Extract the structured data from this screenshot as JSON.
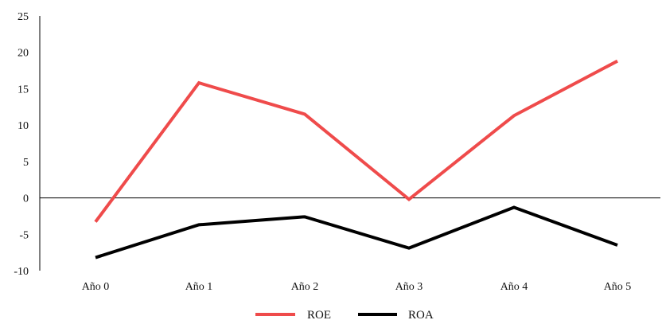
{
  "chart_data": {
    "type": "line",
    "title": "",
    "xlabel": "",
    "ylabel": "",
    "categories": [
      "Año 0",
      "Año 1",
      "Año 2",
      "Año 3",
      "Año 4",
      "Año 5"
    ],
    "ylim": [
      -10,
      25
    ],
    "yticks": [
      "25",
      "20",
      "15",
      "10",
      "5",
      "0",
      "-5",
      "-10"
    ],
    "grid": false,
    "legend_position": "bottom-center",
    "series": [
      {
        "name": "ROE",
        "color": "#ef4b4b",
        "values": [
          -3.3,
          15.8,
          11.5,
          -0.2,
          11.3,
          18.8
        ]
      },
      {
        "name": "ROA",
        "color": "#000000",
        "values": [
          -8.2,
          -3.7,
          -2.6,
          -6.9,
          -1.3,
          -6.5
        ]
      }
    ]
  }
}
